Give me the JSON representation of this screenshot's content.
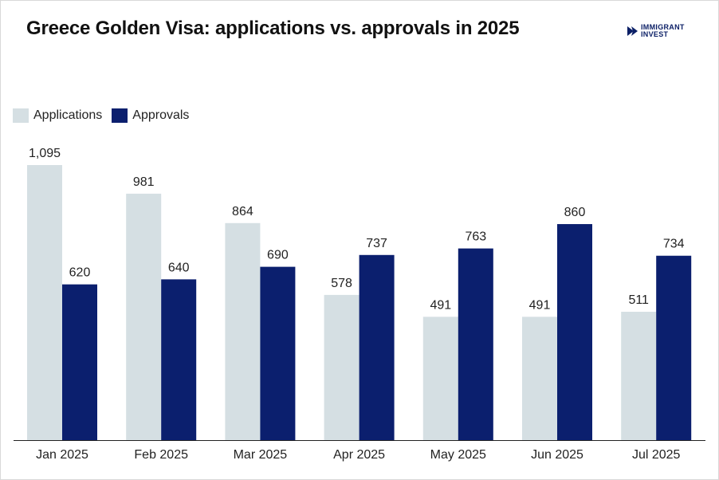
{
  "header": {
    "title": "Greece Golden Visa: applications vs. approvals in 2025",
    "logo_line1": "IMMIGRANT",
    "logo_line2": "INVEST"
  },
  "colors": {
    "applications": "#d5dfe3",
    "approvals": "#0b1f6e",
    "axis": "#222222",
    "logo": "#0b1f66"
  },
  "legend": {
    "applications": "Applications",
    "approvals": "Approvals"
  },
  "chart_data": {
    "type": "bar",
    "title": "Greece Golden Visa: applications vs. approvals in 2025",
    "xlabel": "",
    "ylabel": "",
    "grid": false,
    "legend_position": "top-left",
    "ylim": [
      0,
      1095
    ],
    "categories": [
      "Jan 2025",
      "Feb 2025",
      "Mar 2025",
      "Apr 2025",
      "May 2025",
      "Jun 2025",
      "Jul 2025"
    ],
    "value_labels": {
      "Applications": [
        "1,095",
        "981",
        "864",
        "578",
        "491",
        "491",
        "511"
      ],
      "Approvals": [
        "620",
        "640",
        "690",
        "737",
        "763",
        "860",
        "734"
      ]
    },
    "series": [
      {
        "name": "Applications",
        "values": [
          1095,
          981,
          864,
          578,
          491,
          491,
          511
        ]
      },
      {
        "name": "Approvals",
        "values": [
          620,
          640,
          690,
          737,
          763,
          860,
          734
        ]
      }
    ]
  }
}
